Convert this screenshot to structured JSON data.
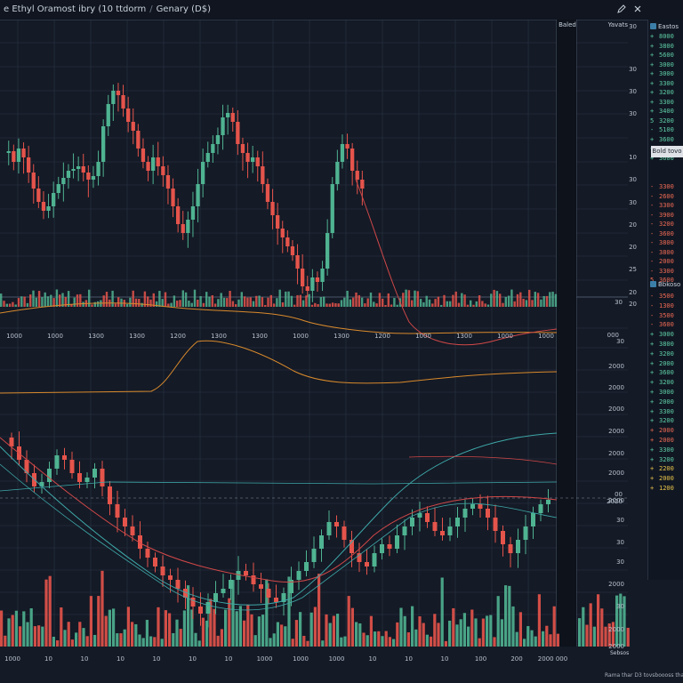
{
  "header": {
    "title": "e Ethyl  Oramost  ibry  (10 ttdorm",
    "separator": "/",
    "symbol": "Genary  (D$)",
    "tool_icon_1": "pencil-icon",
    "tool_icon_2": "close-icon"
  },
  "mid_column_label": "Baled",
  "axis_header": "Yavats",
  "upper_price_axis": [
    "30",
    "30",
    "30",
    "30",
    "10",
    "30",
    "30",
    "20",
    "20",
    "25",
    "20",
    "20"
  ],
  "upper_volume_label": "30",
  "upper_axis_bottom": "000",
  "lower_price_axis": [
    "30",
    "2000",
    "2000",
    "2000",
    "2000",
    "2000",
    "2000",
    "2000",
    "30",
    "30",
    "30",
    "2000",
    "30",
    "2000",
    "2000"
  ],
  "lower_marker_labels": [
    "00",
    "2020"
  ],
  "upper_x_labels": [
    "1000",
    "1000",
    "1300",
    "1300",
    "1200",
    "1300",
    "1300",
    "1000",
    "1300",
    "1200",
    "1000",
    "1300",
    "1000",
    "1000"
  ],
  "lower_x_labels": [
    "1000",
    "10",
    "10",
    "10",
    "10",
    "10",
    "10",
    "1000",
    "1000",
    "1000",
    "10",
    "10",
    "10",
    "100",
    "200",
    "2000 000"
  ],
  "right_panel": {
    "header": "Eastos",
    "section_label": "Bold tovo",
    "section2_header": "Bbkoso",
    "rows": [
      {
        "ind": "+",
        "val": "8000",
        "color": "#5fd0a8"
      },
      {
        "ind": "+",
        "val": "3800",
        "color": "#5fd0a8"
      },
      {
        "ind": "+",
        "val": "5600",
        "color": "#5fd0a8"
      },
      {
        "ind": "+",
        "val": "3000",
        "color": "#5fd0a8"
      },
      {
        "ind": "+",
        "val": "3000",
        "color": "#5fd0a8"
      },
      {
        "ind": "+",
        "val": "3300",
        "color": "#5fd0a8"
      },
      {
        "ind": "+",
        "val": "3200",
        "color": "#5fd0a8"
      },
      {
        "ind": "+",
        "val": "3300",
        "color": "#5fd0a8"
      },
      {
        "ind": "+",
        "val": "3400",
        "color": "#5fd0a8"
      },
      {
        "ind": "5",
        "val": "3200",
        "color": "#5fd0a8"
      },
      {
        "ind": "-",
        "val": "5100",
        "color": "#5fd0a8"
      },
      {
        "ind": "+",
        "val": "3600",
        "color": "#5fd0a8"
      },
      {
        "ind": "+",
        "val": "3300",
        "color": "#5fd0a8"
      },
      {
        "ind": "+",
        "val": "3600",
        "color": "#5fd0a8"
      }
    ],
    "red_rows": [
      {
        "ind": "-",
        "val": "3300",
        "color": "#f06a55"
      },
      {
        "ind": "-",
        "val": "2600",
        "color": "#f06a55"
      },
      {
        "ind": "-",
        "val": "3300",
        "color": "#f06a55"
      },
      {
        "ind": "-",
        "val": "3900",
        "color": "#f06a55"
      },
      {
        "ind": "-",
        "val": "3200",
        "color": "#f06a55"
      },
      {
        "ind": "-",
        "val": "3600",
        "color": "#f06a55"
      },
      {
        "ind": "-",
        "val": "3800",
        "color": "#f06a55"
      },
      {
        "ind": "-",
        "val": "3800",
        "color": "#f06a55"
      },
      {
        "ind": "-",
        "val": "2000",
        "color": "#f06a55"
      },
      {
        "ind": "-",
        "val": "3300",
        "color": "#f06a55"
      },
      {
        "ind": "5",
        "val": "3600",
        "color": "#f06a55"
      }
    ],
    "rows2": [
      {
        "ind": "-",
        "val": "3500",
        "color": "#f06a55"
      },
      {
        "ind": "-",
        "val": "1300",
        "color": "#f06a55"
      },
      {
        "ind": "-",
        "val": "3500",
        "color": "#f06a55"
      },
      {
        "ind": "-",
        "val": "3600",
        "color": "#f06a55"
      },
      {
        "ind": "+",
        "val": "3000",
        "color": "#5fd0a8"
      },
      {
        "ind": "+",
        "val": "3800",
        "color": "#5fd0a8"
      },
      {
        "ind": "+",
        "val": "3200",
        "color": "#5fd0a8"
      },
      {
        "ind": "+",
        "val": "2000",
        "color": "#5fd0a8"
      },
      {
        "ind": "+",
        "val": "3600",
        "color": "#5fd0a8"
      },
      {
        "ind": "+",
        "val": "3200",
        "color": "#5fd0a8"
      },
      {
        "ind": "+",
        "val": "3000",
        "color": "#5fd0a8"
      },
      {
        "ind": "+",
        "val": "2000",
        "color": "#5fd0a8"
      },
      {
        "ind": "+",
        "val": "3300",
        "color": "#5fd0a8"
      },
      {
        "ind": "+",
        "val": "3200",
        "color": "#5fd0a8"
      },
      {
        "ind": "+",
        "val": "2000",
        "color": "#f06a55"
      },
      {
        "ind": "+",
        "val": "2000",
        "color": "#f06a55"
      },
      {
        "ind": "+",
        "val": "3300",
        "color": "#5fd0a8"
      },
      {
        "ind": "+",
        "val": "3200",
        "color": "#5fd0a8"
      },
      {
        "ind": "+",
        "val": "2200",
        "color": "#e8c44a"
      },
      {
        "ind": "+",
        "val": "2000",
        "color": "#e8c44a"
      },
      {
        "ind": "+",
        "val": "1200",
        "color": "#e8c44a"
      }
    ]
  },
  "footer_sub": "Sebsos",
  "footer": "Rama  thar  D3  tovsboooss  tha",
  "colors": {
    "up": "#4fb391",
    "down": "#e5544b",
    "grid": "#2a3445",
    "orange_line": "#d98a2c",
    "teal_line": "#3ea8a8",
    "red_line": "#d04848"
  }
}
